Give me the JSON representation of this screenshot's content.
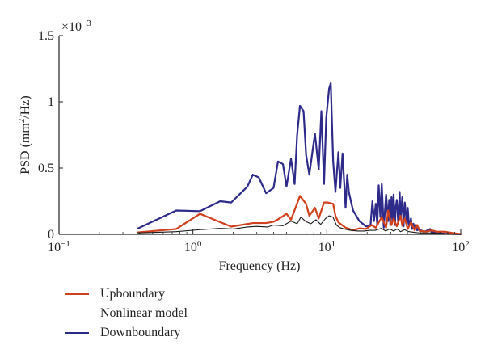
{
  "chart_data": {
    "type": "line",
    "xlabel": "Frequency (Hz)",
    "ylabel": "PSD (mm",
    "ylabel_sup": "2",
    "ylabel_tail": "/Hz)",
    "multiplier": "×10",
    "multiplier_exp": "−3",
    "x_scale": "log",
    "xlim": [
      0.1,
      100
    ],
    "ylim": [
      0,
      1.5
    ],
    "x_ticks": [
      {
        "base": "10",
        "exp": "−1",
        "value": 0.1
      },
      {
        "base": "10",
        "exp": "0",
        "value": 1
      },
      {
        "base": "10",
        "exp": "1",
        "value": 10
      },
      {
        "base": "10",
        "exp": "2",
        "value": 100
      }
    ],
    "y_ticks": [
      {
        "label": "0",
        "value": 0
      },
      {
        "label": "0.5",
        "value": 0.5
      },
      {
        "label": "1",
        "value": 1
      },
      {
        "label": "1.5",
        "value": 1.5
      }
    ],
    "grid": false,
    "legend_position": "bottom-left",
    "series": [
      {
        "name": "Upboundary",
        "color": "#d0401c",
        "width": 2.2,
        "x": [
          0.39,
          0.75,
          1.13,
          1.93,
          2.8,
          3.52,
          4.0,
          4.32,
          5.0,
          5.4,
          6.3,
          7.0,
          7.4,
          8.15,
          8.7,
          9.53,
          10.2,
          11.15,
          11.6,
          12.2,
          13.8,
          15.7,
          17.5,
          19.6,
          21.6,
          23.2,
          25.7,
          27.7,
          28.7,
          30.4,
          31.5,
          33.3,
          35.5,
          36.6,
          38.2,
          40.2,
          42.5,
          45.3,
          47.3,
          49.5,
          55.4,
          60.5,
          66.1,
          75.6,
          86.8,
          95.1,
          100
        ],
        "y": [
          0.015,
          0.04,
          0.155,
          0.058,
          0.085,
          0.085,
          0.095,
          0.113,
          0.155,
          0.11,
          0.29,
          0.23,
          0.14,
          0.2,
          0.12,
          0.24,
          0.24,
          0.23,
          0.14,
          0.09,
          0.05,
          0.03,
          0.045,
          0.04,
          0.07,
          0.05,
          0.13,
          0.05,
          0.18,
          0.07,
          0.12,
          0.06,
          0.14,
          0.065,
          0.12,
          0.04,
          0.09,
          0.03,
          0.07,
          0.025,
          0.02,
          0.03,
          0.02,
          0.02,
          0.01,
          0.005,
          0.003
        ]
      },
      {
        "name": "Nonlinear model",
        "color": "#1a1a1a",
        "width": 1.1,
        "x": [
          0.39,
          0.75,
          1.13,
          1.6,
          2.0,
          2.55,
          3.0,
          3.6,
          4.0,
          4.7,
          5.4,
          6.0,
          6.4,
          7.0,
          7.6,
          8.3,
          9.0,
          9.8,
          10.4,
          11.1,
          11.8,
          12.5,
          13.5,
          15.0,
          17.0,
          19.0,
          21.0,
          23.0,
          25.5,
          27.5,
          29.5,
          31.5,
          33.5,
          35.5,
          38.0,
          41.0,
          45.0,
          50.0,
          60.0,
          75.0,
          100
        ],
        "y": [
          0.01,
          0.02,
          0.035,
          0.045,
          0.04,
          0.055,
          0.06,
          0.055,
          0.07,
          0.065,
          0.1,
          0.08,
          0.13,
          0.095,
          0.08,
          0.11,
          0.075,
          0.12,
          0.14,
          0.13,
          0.07,
          0.05,
          0.04,
          0.03,
          0.025,
          0.025,
          0.03,
          0.03,
          0.045,
          0.025,
          0.04,
          0.025,
          0.04,
          0.02,
          0.035,
          0.02,
          0.015,
          0.01,
          0.01,
          0.005,
          0.002
        ]
      },
      {
        "name": "Downboundary",
        "color": "#2e2a8a",
        "width": 2.2,
        "x": [
          0.39,
          0.75,
          1.13,
          1.6,
          1.93,
          2.55,
          2.8,
          3.1,
          3.52,
          4.0,
          4.32,
          4.7,
          5.0,
          5.4,
          5.75,
          6.0,
          6.3,
          6.7,
          7.0,
          7.4,
          7.8,
          8.15,
          8.7,
          9.1,
          9.53,
          9.9,
          10.4,
          10.7,
          11.15,
          11.6,
          12.2,
          12.6,
          13.1,
          13.8,
          14.2,
          14.6,
          15.2,
          15.7,
          17.5,
          19.6,
          21.2,
          21.9,
          22.5,
          23.2,
          23.8,
          24.4,
          25.1,
          25.7,
          26.6,
          27.7,
          28.7,
          29.2,
          29.8,
          30.4,
          31.0,
          31.5,
          32.3,
          32.6,
          33.3,
          34.1,
          35.0,
          35.5,
          36.6,
          37.4,
          38.2,
          39.6,
          40.2,
          41.1,
          42.5,
          43.3,
          44.3,
          45.3,
          46.2,
          47.3,
          48.4,
          49.5,
          50.6,
          52.6,
          55.4,
          59.1,
          60.5,
          66.1,
          75.6,
          86.8,
          95.1,
          100
        ],
        "y": [
          0.045,
          0.18,
          0.175,
          0.25,
          0.24,
          0.36,
          0.45,
          0.43,
          0.31,
          0.35,
          0.55,
          0.53,
          0.36,
          0.57,
          0.38,
          0.75,
          0.97,
          0.93,
          0.6,
          0.45,
          0.62,
          0.76,
          0.49,
          0.93,
          0.38,
          0.88,
          1.1,
          1.14,
          0.55,
          0.32,
          0.62,
          0.35,
          0.61,
          0.2,
          0.45,
          0.32,
          0.24,
          0.18,
          0.1,
          0.06,
          0.07,
          0.25,
          0.1,
          0.23,
          0.07,
          0.37,
          0.13,
          0.38,
          0.05,
          0.3,
          0.1,
          0.26,
          0.07,
          0.28,
          0.1,
          0.3,
          0.07,
          0.19,
          0.26,
          0.09,
          0.32,
          0.12,
          0.28,
          0.06,
          0.24,
          0.08,
          0.2,
          0.06,
          0.12,
          0.04,
          0.08,
          0.035,
          0.07,
          0.03,
          0.04,
          0.025,
          0.03,
          0.02,
          0.025,
          0.04,
          0.02,
          0.01,
          0.005,
          0.003,
          0.002,
          0.001
        ]
      }
    ]
  }
}
